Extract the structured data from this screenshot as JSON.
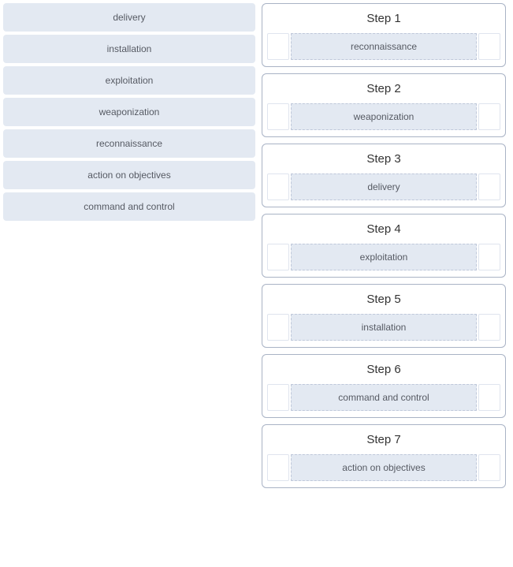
{
  "colors": {
    "pill_bg": "#e3e9f2",
    "pill_text": "#565a63",
    "card_border": "#a9b3c5",
    "slot_border": "#bfc8da",
    "grip_border": "#dfe4ee",
    "title_text": "#333333",
    "page_bg": "#ffffff"
  },
  "left_items": [
    "delivery",
    "installation",
    "exploitation",
    "weaponization",
    "reconnaissance",
    "action on objectives",
    "command and control"
  ],
  "steps": [
    {
      "title": "Step 1",
      "value": "reconnaissance"
    },
    {
      "title": "Step 2",
      "value": "weaponization"
    },
    {
      "title": "Step 3",
      "value": "delivery"
    },
    {
      "title": "Step 4",
      "value": "exploitation"
    },
    {
      "title": "Step 5",
      "value": "installation"
    },
    {
      "title": "Step 6",
      "value": "command and control"
    },
    {
      "title": "Step 7",
      "value": "action on objectives"
    }
  ]
}
